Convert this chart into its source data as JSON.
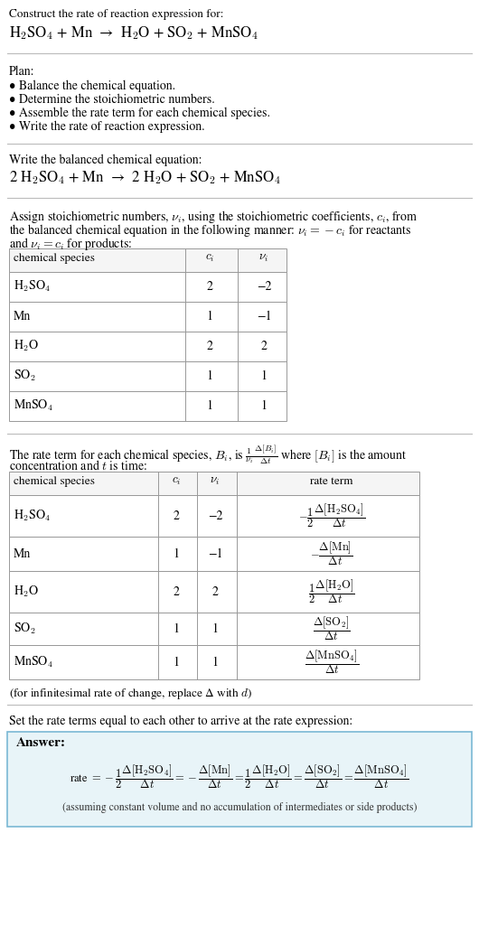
{
  "bg_color": "#ffffff",
  "title_text": "Construct the rate of reaction expression for:",
  "reaction_unbalanced": "H$_2$SO$_4$ + Mn  →  H$_2$O + SO$_2$ + MnSO$_4$",
  "plan_title": "Plan:",
  "plan_bullets": [
    "• Balance the chemical equation.",
    "• Determine the stoichiometric numbers.",
    "• Assemble the rate term for each chemical species.",
    "• Write the rate of reaction expression."
  ],
  "balanced_label": "Write the balanced chemical equation:",
  "reaction_balanced": "2 H$_2$SO$_4$ + Mn  →  2 H$_2$O + SO$_2$ + MnSO$_4$",
  "table1_headers": [
    "chemical species",
    "$c_i$",
    "$\\nu_i$"
  ],
  "table1_rows": [
    [
      "H$_2$SO$_4$",
      "2",
      "−2"
    ],
    [
      "Mn",
      "1",
      "−1"
    ],
    [
      "H$_2$O",
      "2",
      "2"
    ],
    [
      "SO$_2$",
      "1",
      "1"
    ],
    [
      "MnSO$_4$",
      "1",
      "1"
    ]
  ],
  "table2_headers": [
    "chemical species",
    "$c_i$",
    "$\\nu_i$",
    "rate term"
  ],
  "table2_rows": [
    [
      "H$_2$SO$_4$",
      "2",
      "−2",
      "$-\\dfrac{1}{2}\\dfrac{\\Delta[\\mathrm{H_2SO_4}]}{\\Delta t}$"
    ],
    [
      "Mn",
      "1",
      "−1",
      "$-\\dfrac{\\Delta[\\mathrm{Mn}]}{\\Delta t}$"
    ],
    [
      "H$_2$O",
      "2",
      "2",
      "$\\dfrac{1}{2}\\dfrac{\\Delta[\\mathrm{H_2O}]}{\\Delta t}$"
    ],
    [
      "SO$_2$",
      "1",
      "1",
      "$\\dfrac{\\Delta[\\mathrm{SO_2}]}{\\Delta t}$"
    ],
    [
      "MnSO$_4$",
      "1",
      "1",
      "$\\dfrac{\\Delta[\\mathrm{MnSO_4}]}{\\Delta t}$"
    ]
  ],
  "infinitesimal_note": "(for infinitesimal rate of change, replace Δ with $d$)",
  "set_equal_text": "Set the rate terms equal to each other to arrive at the rate expression:",
  "answer_box_color": "#e8f4f8",
  "answer_box_border": "#7ab8d4",
  "answer_label": "Answer:",
  "assumption_note": "(assuming constant volume and no accumulation of intermediates or side products)"
}
